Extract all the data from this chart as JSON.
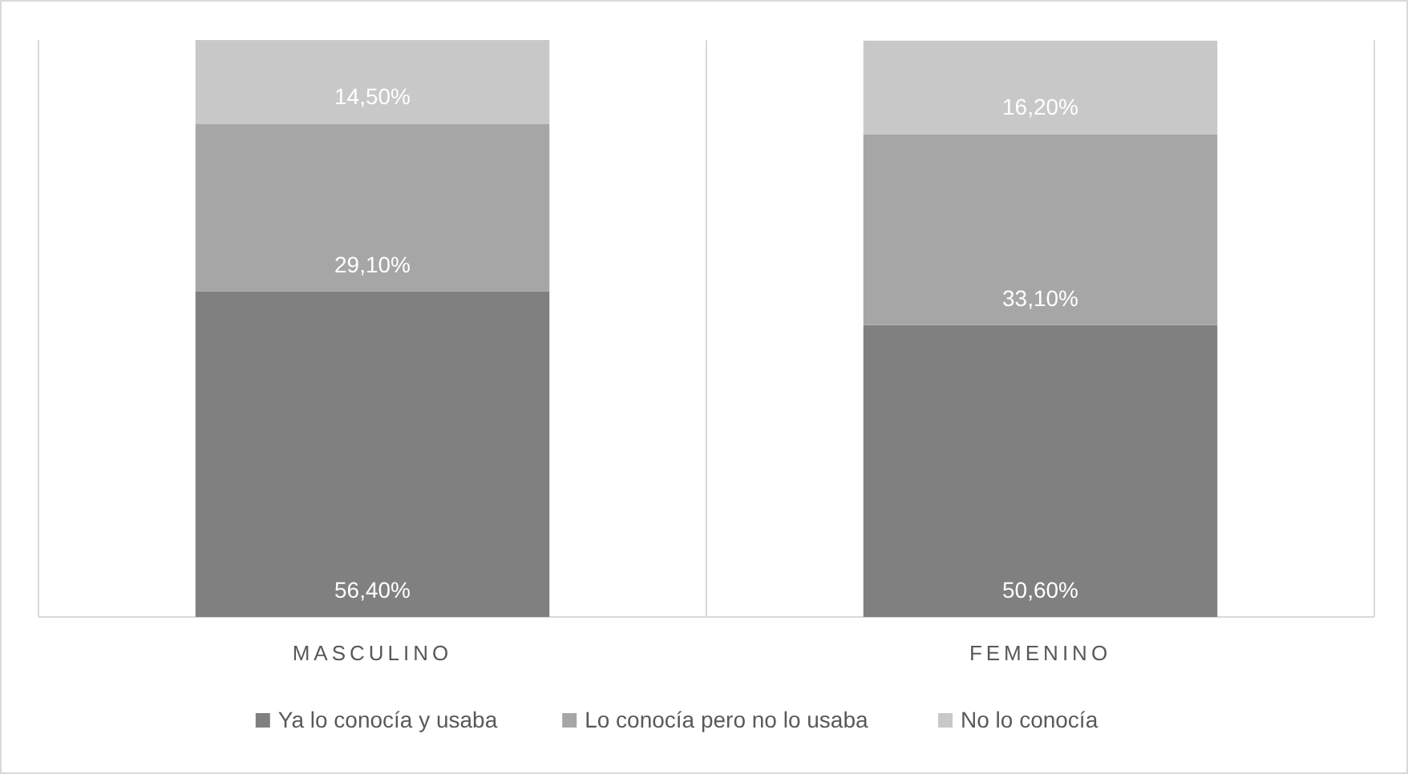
{
  "chart_data": {
    "type": "bar",
    "stacked": true,
    "categories": [
      "MASCULINO",
      "FEMENINO"
    ],
    "series": [
      {
        "name": "Ya lo conocía y usaba",
        "color": "#808080",
        "values": [
          56.4,
          50.6
        ],
        "value_labels": [
          "56,40%",
          "50,60%"
        ]
      },
      {
        "name": "Lo conocía pero no lo usaba",
        "color": "#a6a6a6",
        "values": [
          29.1,
          33.1
        ],
        "value_labels": [
          "29,10%",
          "33,10%"
        ]
      },
      {
        "name": "No lo conocía",
        "color": "#c8c8c8",
        "values": [
          14.5,
          16.2
        ],
        "value_labels": [
          "14,50%",
          "16,20%"
        ]
      }
    ],
    "ylim": [
      0,
      100
    ],
    "tick_labels": "x",
    "grid": "x",
    "legend": "bottom"
  }
}
